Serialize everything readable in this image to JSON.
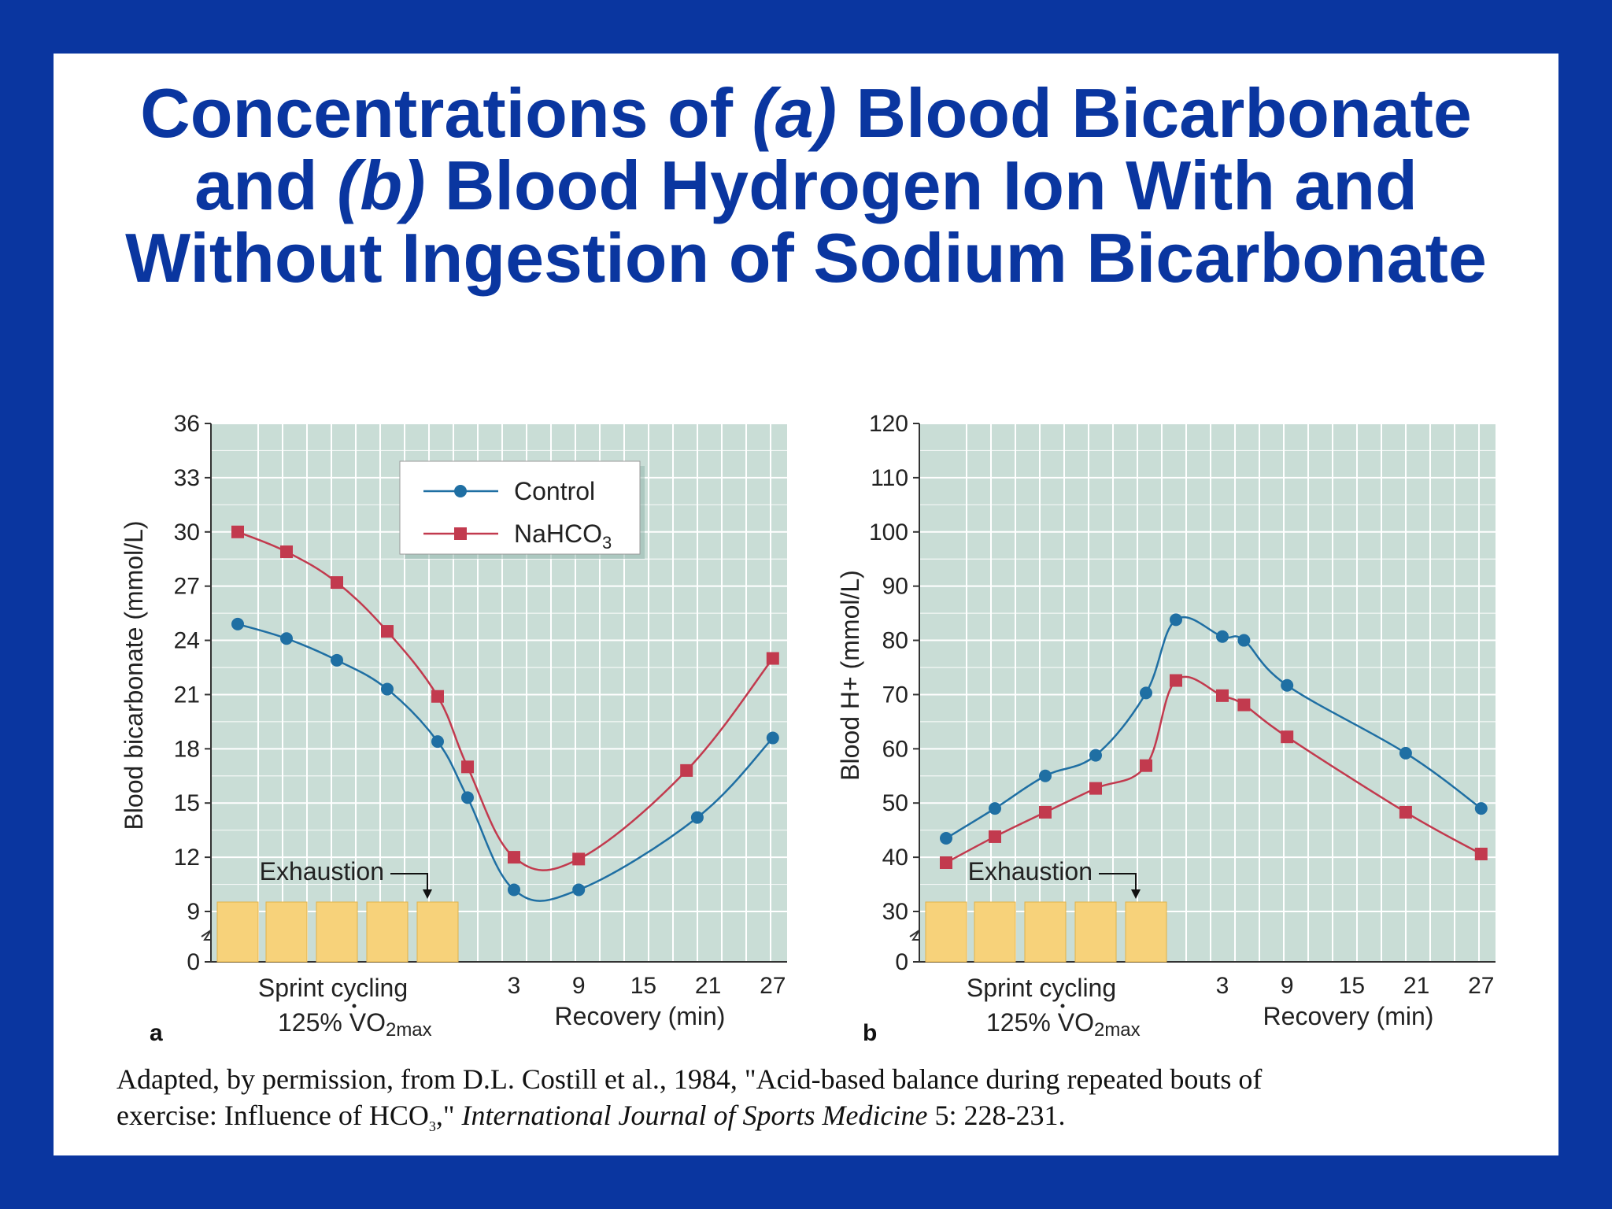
{
  "slide": {
    "title_lines": [
      {
        "pre": "Concentrations of ",
        "em": "(a)",
        "post": " Blood Bicarbonate"
      },
      {
        "pre": "and ",
        "em": "(b)",
        "post": " Blood Hydrogen Ion With and"
      },
      {
        "pre": "Without Ingestion of Sodium Bicarbonate",
        "em": "",
        "post": ""
      }
    ],
    "citation": {
      "line1": "Adapted, by permission, from D.L. Costill et al., 1984, \"Acid-based balance during repeated bouts of",
      "line2_pre": "exercise: Influence of HCO",
      "line2_sub": "3",
      "line2_mid": ",\" ",
      "journal": "International Journal of Sports Medicine",
      "line2_post": " 5: 228-231."
    }
  },
  "colors": {
    "background": "#0a36a0",
    "plot_area": "#c9ddd6",
    "grid": "#ffffff",
    "control": "#1f6fa3",
    "nahco3": "#c23a4e",
    "sprint_bar": "#f7d27a",
    "title": "#0a36a0"
  },
  "chart_data": [
    {
      "type": "line",
      "panel_label": "a",
      "ylabel": "Blood bicarbonate  (mmol/L)",
      "xlabel": "Recovery (min)",
      "sprint_label_1": "Sprint cycling",
      "sprint_label_2_pre": "125% ",
      "sprint_label_2_v": "V",
      "sprint_label_2_o": "O",
      "sprint_label_2_sub": "2max",
      "annotation": "Exhaustion",
      "ylim": [
        0,
        36
      ],
      "y_axis_break": true,
      "y_ticks": [
        0,
        9,
        12,
        15,
        18,
        21,
        24,
        27,
        30,
        33,
        36
      ],
      "x_ticks": [
        "3",
        "9",
        "15",
        "21",
        "27"
      ],
      "legend": {
        "placement": "top-center",
        "entries": [
          "Control",
          "NaHCO3"
        ],
        "nahco3_base": "NaHCO",
        "nahco3_sub": "3"
      },
      "sprint_bouts": 5,
      "series": [
        {
          "name": "Control",
          "marker": "circle",
          "values": [
            {
              "phase": "sprint",
              "bout": 1,
              "y": 24.9
            },
            {
              "phase": "sprint",
              "bout": 2,
              "y": 24.1
            },
            {
              "phase": "sprint",
              "bout": 3,
              "y": 22.9
            },
            {
              "phase": "sprint",
              "bout": 4,
              "y": 21.3
            },
            {
              "phase": "sprint",
              "bout": 5,
              "y": 18.4
            },
            {
              "phase": "exhaustion",
              "y": 15.3
            },
            {
              "phase": "recovery",
              "min": 3,
              "y": 10.2
            },
            {
              "phase": "recovery",
              "min": 9,
              "y": 10.2
            },
            {
              "phase": "recovery",
              "min": 20,
              "y": 14.2
            },
            {
              "phase": "recovery",
              "min": 27,
              "y": 18.6
            }
          ]
        },
        {
          "name": "NaHCO3",
          "marker": "square",
          "values": [
            {
              "phase": "sprint",
              "bout": 1,
              "y": 30.0
            },
            {
              "phase": "sprint",
              "bout": 2,
              "y": 28.9
            },
            {
              "phase": "sprint",
              "bout": 3,
              "y": 27.2
            },
            {
              "phase": "sprint",
              "bout": 4,
              "y": 24.5
            },
            {
              "phase": "sprint",
              "bout": 5,
              "y": 20.9
            },
            {
              "phase": "exhaustion",
              "y": 17.0
            },
            {
              "phase": "recovery",
              "min": 3,
              "y": 12.0
            },
            {
              "phase": "recovery",
              "min": 9,
              "y": 11.9
            },
            {
              "phase": "recovery",
              "min": 19,
              "y": 16.8
            },
            {
              "phase": "recovery",
              "min": 27,
              "y": 23.0
            }
          ]
        }
      ]
    },
    {
      "type": "line",
      "panel_label": "b",
      "ylabel": "Blood H+ (mmol/L)",
      "xlabel": "Recovery (min)",
      "sprint_label_1": "Sprint cycling",
      "sprint_label_2_pre": "125% ",
      "sprint_label_2_v": "V",
      "sprint_label_2_o": "O",
      "sprint_label_2_sub": "2max",
      "annotation": "Exhaustion",
      "ylim": [
        0,
        120
      ],
      "y_axis_break": true,
      "y_ticks": [
        0,
        30,
        40,
        50,
        60,
        70,
        80,
        90,
        100,
        110,
        120
      ],
      "x_ticks": [
        "3",
        "9",
        "15",
        "21",
        "27"
      ],
      "sprint_bouts": 5,
      "series": [
        {
          "name": "Control",
          "marker": "circle",
          "values": [
            {
              "phase": "sprint",
              "bout": 1,
              "y": 43.5
            },
            {
              "phase": "sprint",
              "bout": 2,
              "y": 49.0
            },
            {
              "phase": "sprint",
              "bout": 3,
              "y": 55.0
            },
            {
              "phase": "sprint",
              "bout": 4,
              "y": 58.8
            },
            {
              "phase": "sprint",
              "bout": 5,
              "y": 70.3
            },
            {
              "phase": "exhaustion",
              "y": 83.8
            },
            {
              "phase": "recovery",
              "min": 3,
              "y": 80.7
            },
            {
              "phase": "recovery",
              "min": 5,
              "y": 80.0
            },
            {
              "phase": "recovery",
              "min": 9,
              "y": 71.7
            },
            {
              "phase": "recovery",
              "min": 20,
              "y": 59.2
            },
            {
              "phase": "recovery",
              "min": 27,
              "y": 49.0
            }
          ]
        },
        {
          "name": "NaHCO3",
          "marker": "square",
          "values": [
            {
              "phase": "sprint",
              "bout": 1,
              "y": 39.0
            },
            {
              "phase": "sprint",
              "bout": 2,
              "y": 43.8
            },
            {
              "phase": "sprint",
              "bout": 3,
              "y": 48.3
            },
            {
              "phase": "sprint",
              "bout": 4,
              "y": 52.7
            },
            {
              "phase": "sprint",
              "bout": 5,
              "y": 56.9
            },
            {
              "phase": "exhaustion",
              "y": 72.6
            },
            {
              "phase": "recovery",
              "min": 3,
              "y": 69.8
            },
            {
              "phase": "recovery",
              "min": 5,
              "y": 68.1
            },
            {
              "phase": "recovery",
              "min": 9,
              "y": 62.2
            },
            {
              "phase": "recovery",
              "min": 20,
              "y": 48.3
            },
            {
              "phase": "recovery",
              "min": 27,
              "y": 40.6
            }
          ]
        }
      ]
    }
  ]
}
